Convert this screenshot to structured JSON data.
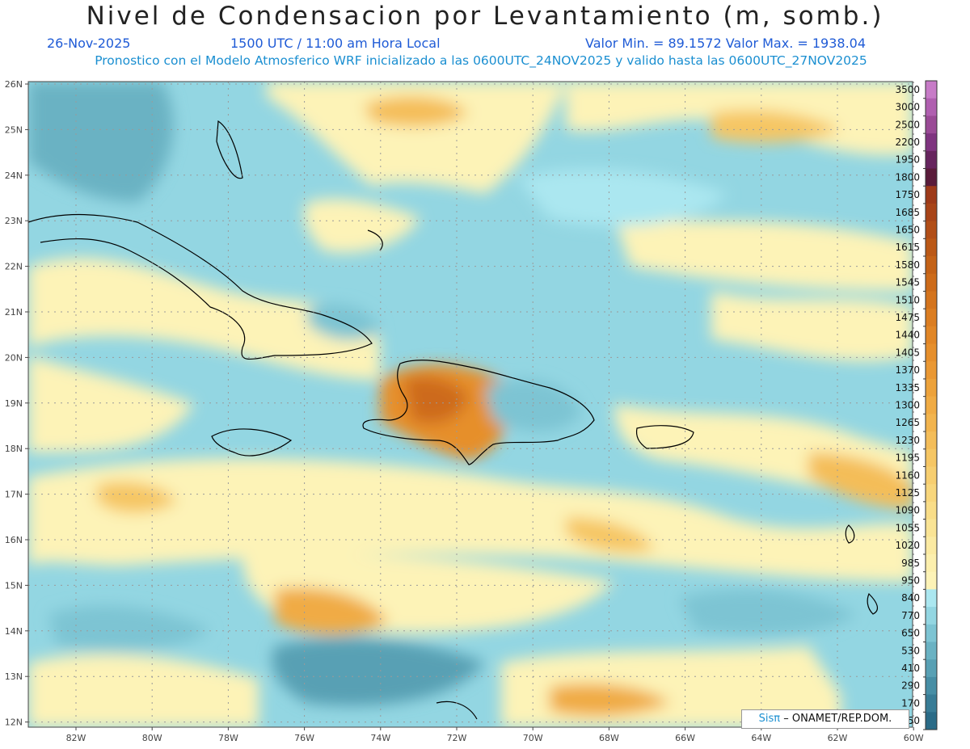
{
  "title": "Nivel de Condensacion por Levantamiento (m, somb.)",
  "date": "26-Nov-2025",
  "time": "1500 UTC / 11:00 am Hora Local",
  "min_max": "Valor Min. = 89.1572   Valor Max. = 1938.04",
  "subtitle": "Pronostico con el Modelo Atmosferico WRF inicializado a las 0600UTC_24NOV2025 y valido hasta las  0600UTC_27NOV2025",
  "credit": {
    "sis": "Sisπ",
    "rest": "– ONAMET/REP.DOM."
  },
  "lat_labels": [
    "26N",
    "25N",
    "24N",
    "23N",
    "22N",
    "21N",
    "20N",
    "19N",
    "18N",
    "17N",
    "16N",
    "15N",
    "14N",
    "13N",
    "12N"
  ],
  "lon_labels": [
    "82W",
    "80W",
    "78W",
    "76W",
    "74W",
    "72W",
    "70W",
    "68W",
    "66W",
    "64W",
    "62W",
    "60W"
  ],
  "colorbar": {
    "levels": [
      "3500",
      "3000",
      "2500",
      "2200",
      "1950",
      "1800",
      "1750",
      "1685",
      "1650",
      "1615",
      "1580",
      "1545",
      "1510",
      "1475",
      "1440",
      "1405",
      "1370",
      "1335",
      "1300",
      "1265",
      "1230",
      "1195",
      "1160",
      "1125",
      "1090",
      "1055",
      "1020",
      "985",
      "950",
      "840",
      "770",
      "650",
      "530",
      "410",
      "290",
      "170",
      "50"
    ],
    "colors": [
      "#c77bc7",
      "#b05fb0",
      "#9a4a96",
      "#7f3480",
      "#66245e",
      "#5a1b3a",
      "#9e3a19",
      "#a84418",
      "#b24e17",
      "#bb5816",
      "#c46217",
      "#cd6b1a",
      "#d4741d",
      "#db7d21",
      "#e18626",
      "#e68f2c",
      "#ea9833",
      "#eda23b",
      "#f0ab44",
      "#f2b44e",
      "#f4bd59",
      "#f6c664",
      "#f7ce70",
      "#f8d67c",
      "#f9dd88",
      "#fae495",
      "#fbeaa2",
      "#fcefad",
      "#fdf3b7",
      "#abe7f0",
      "#93d6e2",
      "#7dc4d3",
      "#6ab2c3",
      "#58a0b4",
      "#478ea5",
      "#387c96",
      "#2a6b87"
    ]
  }
}
